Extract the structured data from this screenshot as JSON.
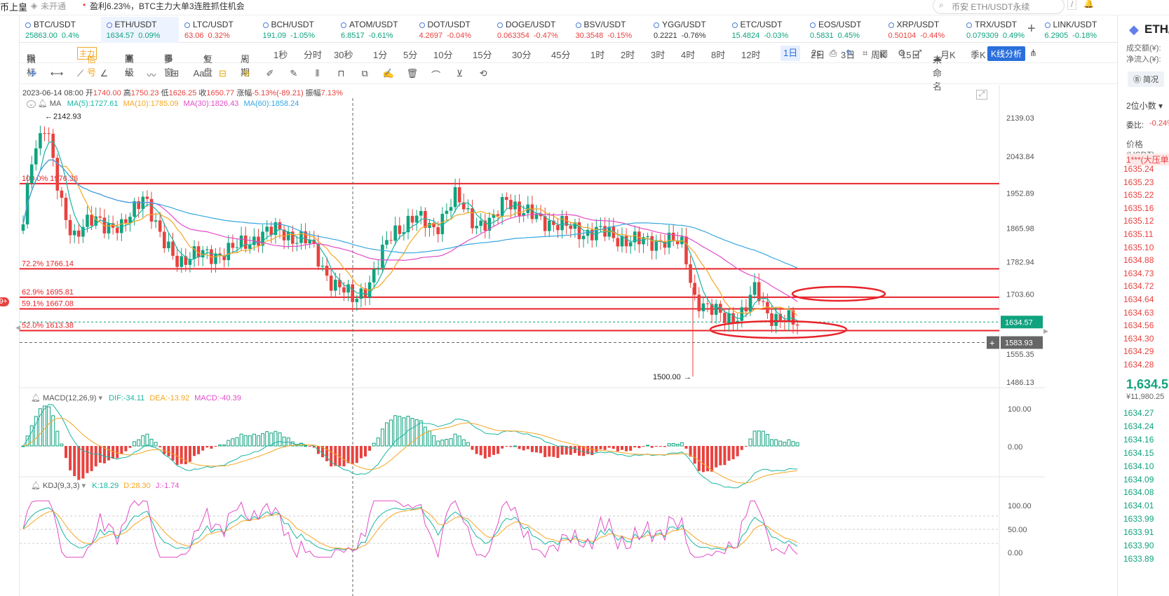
{
  "topbar": {
    "left_text": "币上皇",
    "not_open": "未开通",
    "news": "盈利6.23%，BTC主力大单3连胜抓住机会",
    "search_placeholder": "币安 ETH/USDT永续"
  },
  "tickers": [
    {
      "sym": "BTC/USDT",
      "price": "25863.00",
      "chg": "0.4%",
      "dir": "up"
    },
    {
      "sym": "ETH/USDT",
      "price": "1634.57",
      "chg": "0.09%",
      "dir": "up",
      "active": true
    },
    {
      "sym": "LTC/USDT",
      "price": "63.06",
      "chg": "0.32%",
      "dir": "down"
    },
    {
      "sym": "BCH/USDT",
      "price": "191.09",
      "chg": "-1.05%",
      "dir": "up"
    },
    {
      "sym": "ATOM/USDT",
      "price": "6.8517",
      "chg": "-0.61%",
      "dir": "up"
    },
    {
      "sym": "DOT/USDT",
      "price": "4.2697",
      "chg": "-0.04%",
      "dir": "down"
    },
    {
      "sym": "DOGE/USDT",
      "price": "0.063354",
      "chg": "-0.47%",
      "dir": "down"
    },
    {
      "sym": "BSV/USDT",
      "price": "30.3548",
      "chg": "-0.15%",
      "dir": "down"
    },
    {
      "sym": "YGG/USDT",
      "price": "0.2221",
      "chg": "-0.76%",
      "dir": "neutral"
    },
    {
      "sym": "ETC/USDT",
      "price": "15.4824",
      "chg": "-0.03%",
      "dir": "up"
    },
    {
      "sym": "EOS/USDT",
      "price": "0.5831",
      "chg": "0.45%",
      "dir": "up"
    },
    {
      "sym": "XRP/USDT",
      "price": "0.50104",
      "chg": "-0.44%",
      "dir": "down"
    },
    {
      "sym": "TRX/USDT",
      "price": "0.079309",
      "chg": "0.49%",
      "dir": "up"
    },
    {
      "sym": "LINK/USDT",
      "price": "6.2905",
      "chg": "-0.18%",
      "dir": "up"
    }
  ],
  "toolbar": {
    "indicator": "指标",
    "main_tag": "主力",
    "signal": "信号",
    "advanced": "高级",
    "multi": "多窗",
    "replay": "复盘",
    "period": "周期",
    "periods": [
      "1秒",
      "分时",
      "30秒",
      "1分",
      "5分",
      "10分",
      "15分",
      "30分",
      "45分",
      "1时",
      "2时",
      "3时",
      "4时",
      "8时",
      "12时",
      "1日",
      "2日",
      "3日",
      "周K",
      "15日",
      "月K",
      "季K"
    ],
    "selected_period": "1日",
    "interval": "2s",
    "unnamed": "未命名",
    "kline_analysis": "K线分析"
  },
  "drawing_tools": [
    "crosshair-icon",
    "horizontal-line-icon",
    "trend-line-icon",
    "angle-icon",
    "parallel-lines-icon",
    "wave-icon",
    "measure-icon",
    "text-icon",
    "fib-icon",
    "pattern-icon",
    "brush-icon",
    "pen-icon",
    "candle-icon",
    "lock-icon",
    "copy-icon",
    "edit-icon",
    "delete-icon",
    "magnet-icon",
    "filter-icon",
    "sync-icon"
  ],
  "ohlc": {
    "date": "2023-06-14 08:00",
    "open_label": "开",
    "open": "1740.00",
    "high_label": "高",
    "high": "1750.23",
    "low_label": "低",
    "low": "1626.25",
    "close_label": "收",
    "close": "1650.77",
    "change_label": "涨幅",
    "change": "-5.13%(-89.21)",
    "amp_label": "振幅",
    "amp": "7.13%"
  },
  "ma": {
    "label": "MA",
    "ma5": "MA(5):1727.61",
    "ma10": "MA(10):1785.09",
    "ma30": "MA(30):1826.43",
    "ma60": "MA(60):1858.24",
    "colors": {
      "ma5": "#19b5a4",
      "ma10": "#f5a623",
      "ma30": "#e24cc8",
      "ma60": "#35a7e0"
    }
  },
  "price_axis": [
    "2139.03",
    "2043.84",
    "1952.89",
    "1865.98",
    "1782.94",
    "1703.60",
    "1634.57",
    "1583.93",
    "1555.35",
    "1486.13"
  ],
  "fib_levels": [
    {
      "label": "100.0% 1976.36",
      "price": 1976.36
    },
    {
      "label": "72.2% 1766.14",
      "price": 1766.14
    },
    {
      "label": "62.9% 1695.81",
      "price": 1695.81
    },
    {
      "label": "59.1% 1667.08",
      "price": 1667.08
    },
    {
      "label": "52.0% 1613.38",
      "price": 1613.38
    }
  ],
  "markers": {
    "high": "2142.93",
    "low": "1500.00",
    "current_price": "1634.57",
    "cursor_price": "1583.93"
  },
  "macd": {
    "label": "MACD(12,26,9)",
    "dif": "DIF:-34.11",
    "dea": "DEA:-13.92",
    "macd": "MACD:-40.39",
    "axis": [
      "100.00",
      "0.00"
    ]
  },
  "kdj": {
    "label": "KDJ(9,3,3)",
    "k": "K:18.29",
    "d": "D:28.30",
    "j": "J:-1.74",
    "axis": [
      "100.00",
      "50.00",
      "0.00"
    ]
  },
  "right_panel": {
    "symbol": "ETH/",
    "turnover": "成交额(¥):",
    "net_inflow": "净流入(¥):",
    "brief": "简况",
    "decimals": "2位小数",
    "ratio_label": "委比:",
    "ratio": "-0.24%",
    "price_col": "价格(USDT)",
    "big_order": "1***(大压单",
    "asks": [
      "1635.24",
      "1635.23",
      "1635.22",
      "1635.16",
      "1635.12",
      "1635.11",
      "1635.10",
      "1634.88",
      "1634.73",
      "1634.72",
      "1634.64",
      "1634.63",
      "1634.56",
      "1634.30",
      "1634.29",
      "1634.28"
    ],
    "last": "1,634.57",
    "last_cny": "¥11,980.25",
    "bids": [
      "1634.27",
      "1634.24",
      "1634.16",
      "1634.15",
      "1634.10",
      "1634.09",
      "1634.08",
      "1634.01",
      "1633.99",
      "1633.91",
      "1633.90",
      "1633.89"
    ]
  },
  "colors": {
    "up": "#0fa37f",
    "down": "#e8423f",
    "accent": "#2a6fdb"
  }
}
